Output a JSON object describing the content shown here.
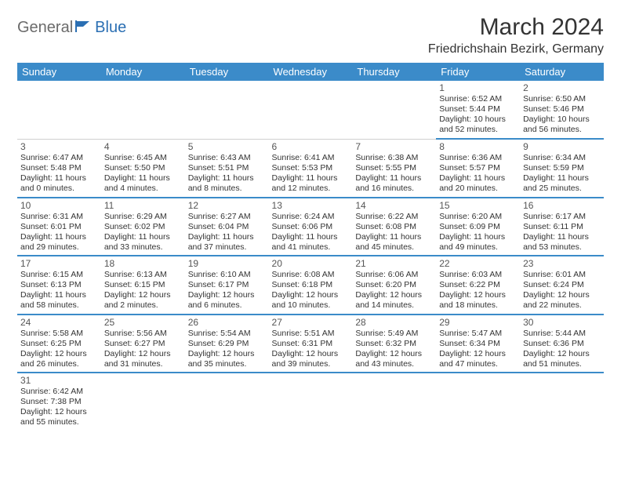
{
  "logo": {
    "gray": "General",
    "blue": "Blue"
  },
  "title": "March 2024",
  "location": "Friedrichshain Bezirk, Germany",
  "colors": {
    "header_bg": "#3b8bc9",
    "header_text": "#ffffff",
    "cell_border": "#3b8bc9",
    "logo_gray": "#6b6b6b",
    "logo_blue": "#2b6fb3"
  },
  "day_headers": [
    "Sunday",
    "Monday",
    "Tuesday",
    "Wednesday",
    "Thursday",
    "Friday",
    "Saturday"
  ],
  "weeks": [
    [
      null,
      null,
      null,
      null,
      null,
      {
        "n": "1",
        "sr": "6:52 AM",
        "ss": "5:44 PM",
        "dl": "10 hours and 52 minutes."
      },
      {
        "n": "2",
        "sr": "6:50 AM",
        "ss": "5:46 PM",
        "dl": "10 hours and 56 minutes."
      }
    ],
    [
      {
        "n": "3",
        "sr": "6:47 AM",
        "ss": "5:48 PM",
        "dl": "11 hours and 0 minutes."
      },
      {
        "n": "4",
        "sr": "6:45 AM",
        "ss": "5:50 PM",
        "dl": "11 hours and 4 minutes."
      },
      {
        "n": "5",
        "sr": "6:43 AM",
        "ss": "5:51 PM",
        "dl": "11 hours and 8 minutes."
      },
      {
        "n": "6",
        "sr": "6:41 AM",
        "ss": "5:53 PM",
        "dl": "11 hours and 12 minutes."
      },
      {
        "n": "7",
        "sr": "6:38 AM",
        "ss": "5:55 PM",
        "dl": "11 hours and 16 minutes."
      },
      {
        "n": "8",
        "sr": "6:36 AM",
        "ss": "5:57 PM",
        "dl": "11 hours and 20 minutes."
      },
      {
        "n": "9",
        "sr": "6:34 AM",
        "ss": "5:59 PM",
        "dl": "11 hours and 25 minutes."
      }
    ],
    [
      {
        "n": "10",
        "sr": "6:31 AM",
        "ss": "6:01 PM",
        "dl": "11 hours and 29 minutes."
      },
      {
        "n": "11",
        "sr": "6:29 AM",
        "ss": "6:02 PM",
        "dl": "11 hours and 33 minutes."
      },
      {
        "n": "12",
        "sr": "6:27 AM",
        "ss": "6:04 PM",
        "dl": "11 hours and 37 minutes."
      },
      {
        "n": "13",
        "sr": "6:24 AM",
        "ss": "6:06 PM",
        "dl": "11 hours and 41 minutes."
      },
      {
        "n": "14",
        "sr": "6:22 AM",
        "ss": "6:08 PM",
        "dl": "11 hours and 45 minutes."
      },
      {
        "n": "15",
        "sr": "6:20 AM",
        "ss": "6:09 PM",
        "dl": "11 hours and 49 minutes."
      },
      {
        "n": "16",
        "sr": "6:17 AM",
        "ss": "6:11 PM",
        "dl": "11 hours and 53 minutes."
      }
    ],
    [
      {
        "n": "17",
        "sr": "6:15 AM",
        "ss": "6:13 PM",
        "dl": "11 hours and 58 minutes."
      },
      {
        "n": "18",
        "sr": "6:13 AM",
        "ss": "6:15 PM",
        "dl": "12 hours and 2 minutes."
      },
      {
        "n": "19",
        "sr": "6:10 AM",
        "ss": "6:17 PM",
        "dl": "12 hours and 6 minutes."
      },
      {
        "n": "20",
        "sr": "6:08 AM",
        "ss": "6:18 PM",
        "dl": "12 hours and 10 minutes."
      },
      {
        "n": "21",
        "sr": "6:06 AM",
        "ss": "6:20 PM",
        "dl": "12 hours and 14 minutes."
      },
      {
        "n": "22",
        "sr": "6:03 AM",
        "ss": "6:22 PM",
        "dl": "12 hours and 18 minutes."
      },
      {
        "n": "23",
        "sr": "6:01 AM",
        "ss": "6:24 PM",
        "dl": "12 hours and 22 minutes."
      }
    ],
    [
      {
        "n": "24",
        "sr": "5:58 AM",
        "ss": "6:25 PM",
        "dl": "12 hours and 26 minutes."
      },
      {
        "n": "25",
        "sr": "5:56 AM",
        "ss": "6:27 PM",
        "dl": "12 hours and 31 minutes."
      },
      {
        "n": "26",
        "sr": "5:54 AM",
        "ss": "6:29 PM",
        "dl": "12 hours and 35 minutes."
      },
      {
        "n": "27",
        "sr": "5:51 AM",
        "ss": "6:31 PM",
        "dl": "12 hours and 39 minutes."
      },
      {
        "n": "28",
        "sr": "5:49 AM",
        "ss": "6:32 PM",
        "dl": "12 hours and 43 minutes."
      },
      {
        "n": "29",
        "sr": "5:47 AM",
        "ss": "6:34 PM",
        "dl": "12 hours and 47 minutes."
      },
      {
        "n": "30",
        "sr": "5:44 AM",
        "ss": "6:36 PM",
        "dl": "12 hours and 51 minutes."
      }
    ],
    [
      {
        "n": "31",
        "sr": "6:42 AM",
        "ss": "7:38 PM",
        "dl": "12 hours and 55 minutes."
      },
      null,
      null,
      null,
      null,
      null,
      null
    ]
  ],
  "labels": {
    "sunrise": "Sunrise:",
    "sunset": "Sunset:",
    "daylight": "Daylight:"
  }
}
